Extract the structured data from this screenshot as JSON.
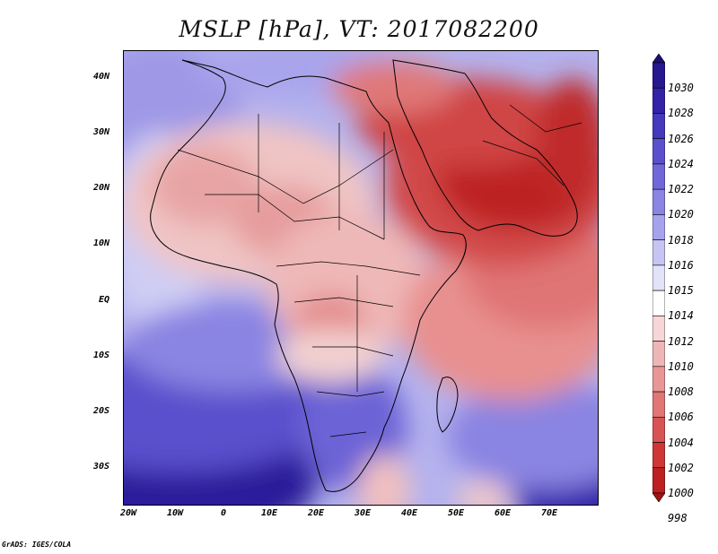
{
  "title": "MSLP [hPa], VT: 2017082200",
  "credit": "GrADS: IGES/COLA",
  "map": {
    "variable": "Mean sea level pressure",
    "units": "hPa",
    "valid_time": "2017082200",
    "lon_range": [
      -25,
      80
    ],
    "lat_range": [
      -37,
      45
    ],
    "lat_ticks": [
      "40N",
      "30N",
      "20N",
      "10N",
      "EQ",
      "10S",
      "20S",
      "30S"
    ],
    "lon_ticks": [
      "20W",
      "10W",
      "0",
      "10E",
      "20E",
      "30E",
      "40E",
      "50E",
      "60E",
      "70E"
    ],
    "colorbar": {
      "levels": [
        "1030",
        "1028",
        "1026",
        "1024",
        "1022",
        "1020",
        "1018",
        "1016",
        "1015",
        "1014",
        "1012",
        "1010",
        "1008",
        "1006",
        "1004",
        "1002",
        "1000",
        "998"
      ],
      "colors": [
        "#1a0f7a",
        "#26188f",
        "#3322a8",
        "#4638bd",
        "#5b50cc",
        "#7068d8",
        "#8a84e2",
        "#a6a2ec",
        "#c6c4f3",
        "#e2e2f8",
        "#ffffff",
        "#f6d6d6",
        "#efb6b6",
        "#e89696",
        "#e07676",
        "#d85454",
        "#cf3636",
        "#bd2020",
        "#a01414"
      ]
    }
  }
}
